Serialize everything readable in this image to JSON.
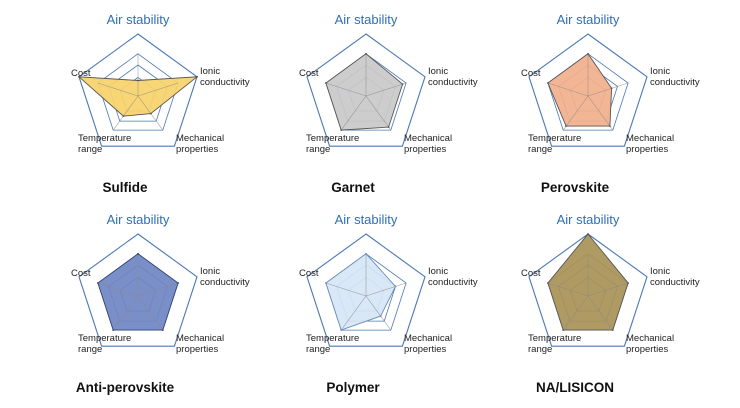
{
  "axes": [
    "Air stability",
    "Ionic\nconductivity",
    "Mechanical\nproperties",
    "Temperature\nrange",
    "Cost"
  ],
  "colors": {
    "top_label": "#2e6fb5",
    "grid": "#4a78b4",
    "label": "#222222"
  },
  "chart_data": [
    {
      "type": "radar",
      "title": "Sulfide",
      "axes": [
        "Air stability",
        "Ionic conductivity",
        "Mechanical properties",
        "Temperature range",
        "Cost"
      ],
      "values": [
        0.25,
        1.0,
        0.35,
        0.4,
        1.0
      ],
      "rmax": 1.0,
      "fill": "#f7d36a",
      "stroke": "#555555"
    },
    {
      "type": "radar",
      "title": "Garnet",
      "axes": [
        "Air stability",
        "Ionic conductivity",
        "Mechanical properties",
        "Temperature range",
        "Cost"
      ],
      "values": [
        0.68,
        0.62,
        0.62,
        0.68,
        0.68
      ],
      "rmax": 1.0,
      "fill": "#c9c9c9",
      "stroke": "#555555"
    },
    {
      "type": "radar",
      "title": "Perovskite",
      "axes": [
        "Air stability",
        "Ionic conductivity",
        "Mechanical properties",
        "Temperature range",
        "Cost"
      ],
      "values": [
        0.68,
        0.4,
        0.6,
        0.6,
        0.68
      ],
      "rmax": 1.0,
      "fill": "#f2b08c",
      "stroke": "#555555"
    },
    {
      "type": "radar",
      "title": "Anti-perovskite",
      "axes": [
        "Air stability",
        "Ionic conductivity",
        "Mechanical properties",
        "Temperature range",
        "Cost"
      ],
      "values": [
        0.68,
        0.68,
        0.68,
        0.68,
        0.68
      ],
      "rmax": 1.0,
      "fill": "#6f86c2",
      "stroke": "#334477"
    },
    {
      "type": "radar",
      "title": "Polymer",
      "axes": [
        "Air stability",
        "Ionic conductivity",
        "Mechanical properties",
        "Temperature range",
        "Cost"
      ],
      "values": [
        0.68,
        0.5,
        0.4,
        0.68,
        0.68
      ],
      "rmax": 1.0,
      "fill": "#d6e6f6",
      "stroke": "#6b8cb8"
    },
    {
      "type": "radar",
      "title": "NA/LISICON",
      "axes": [
        "Air stability",
        "Ionic conductivity",
        "Mechanical properties",
        "Temperature range",
        "Cost"
      ],
      "values": [
        1.0,
        0.68,
        0.68,
        0.68,
        0.68
      ],
      "rmax": 1.0,
      "fill": "#a89157",
      "stroke": "#555555"
    }
  ]
}
